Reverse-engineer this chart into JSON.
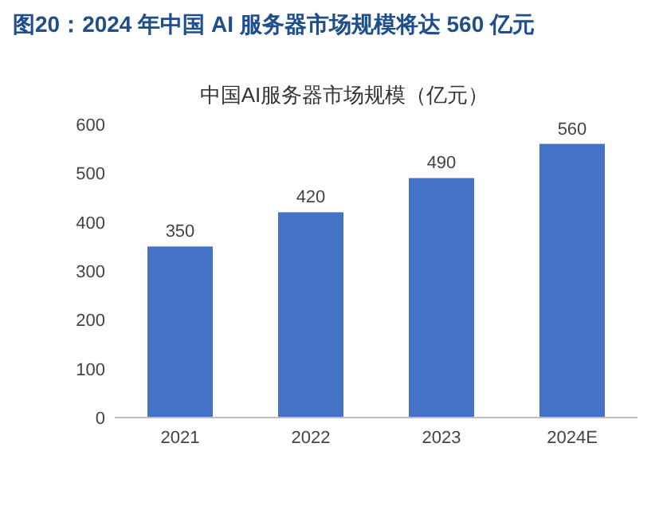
{
  "chart_data": {
    "type": "bar",
    "title": "图20：2024 年中国 AI 服务器市场规模将达 560 亿元",
    "subtitle": "中国AI服务器市场规模（亿元）",
    "categories": [
      "2021",
      "2022",
      "2023",
      "2024E"
    ],
    "values": [
      350,
      420,
      490,
      560
    ],
    "color": "#4472c4",
    "ylim": [
      0,
      600
    ],
    "yticks": [
      0,
      100,
      200,
      300,
      400,
      500,
      600
    ],
    "data_labels": true
  }
}
